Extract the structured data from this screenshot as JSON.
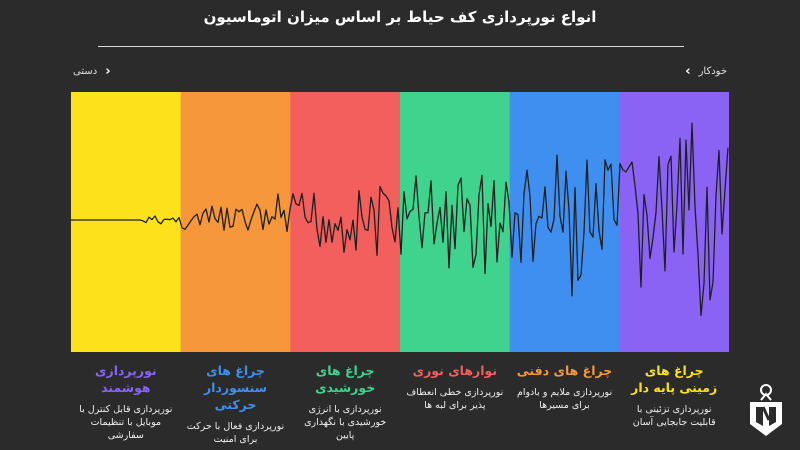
{
  "header": {
    "title": "انواع نورپردازی کف حیاط بر اساس میزان اتوماسیون",
    "left_label": "دستی",
    "right_label": "خودکار"
  },
  "categories": [
    {
      "title": "چراغ های زمینی پایه دار",
      "desc": "نورپردازی تزئینی با قابلیت جابجایی آسان",
      "color": "#fde21b",
      "text_color": "#fde21b"
    },
    {
      "title": "چراغ های دفنی",
      "desc": "نورپردازی ملایم و بادوام برای مسیرها",
      "color": "#f5973a",
      "text_color": "#f5973a"
    },
    {
      "title": "نوارهای نوری",
      "desc": "نورپردازی خطی انعطاف پذیر برای لبه ها",
      "color": "#f25f5c",
      "text_color": "#f25f5c"
    },
    {
      "title": "چراغ های خورشیدی",
      "desc": "نورپردازی با انرژی خورشیدی با نگهداری پایین",
      "color": "#3fd38d",
      "text_color": "#3fd38d"
    },
    {
      "title": "چراغ های سنسوردار حرکتی",
      "desc": "نورپردازی فعال با حرکت برای امنیت",
      "color": "#3f8ff0",
      "text_color": "#3f8ff0"
    },
    {
      "title": "نورپردازی هوشمند",
      "desc": "نورپردازی قابل کنترل با موبایل با تنظیمات سفارشی",
      "color": "#8a63f5",
      "text_color": "#8a63f5"
    }
  ],
  "colors": {
    "background": "#2b2b2b",
    "wave": "#1f1f1f"
  },
  "icons": {
    "left": "chevron-left-icon",
    "right": "chevron-right-icon",
    "logo": "lightbulb-gear-logo-icon"
  }
}
